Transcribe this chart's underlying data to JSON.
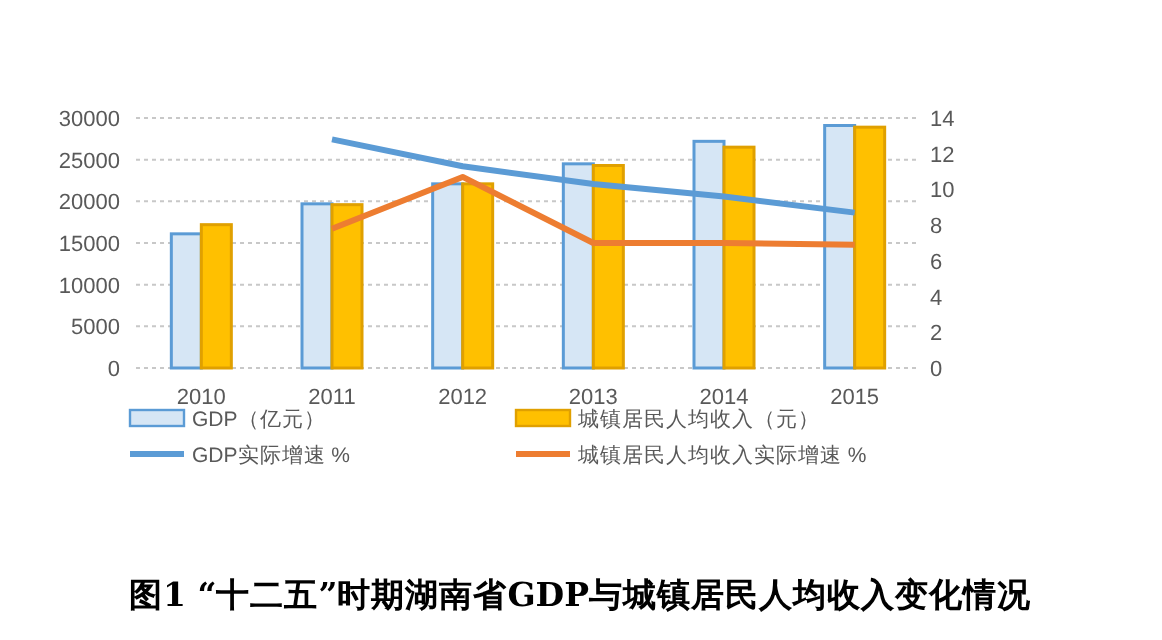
{
  "chart_data": {
    "type": "bar",
    "title": "图1 “十二五”时期湖南省GDP与城镇居民人均收入变化情况",
    "categories": [
      "2010",
      "2011",
      "2012",
      "2013",
      "2014",
      "2015"
    ],
    "series": [
      {
        "name": "GDP（亿元）",
        "color": "#5b9bd5",
        "values": [
          16100,
          19700,
          22100,
          24500,
          27200,
          29100
        ]
      },
      {
        "name": "城镇居民人均收入（元）",
        "color": "#ffc000",
        "values": [
          17200,
          19600,
          22100,
          24300,
          26500,
          28900
        ]
      },
      {
        "name": "GDP实际增速 %",
        "type": "line",
        "axis": "y2",
        "color": "#5b9bd5",
        "values": [
          null,
          12.8,
          11.3,
          10.3,
          9.6,
          8.7
        ]
      },
      {
        "name": "城镇居民人均收入实际增速 %",
        "type": "line",
        "axis": "y2",
        "color": "#ed7d31",
        "values": [
          null,
          7.8,
          10.7,
          7.0,
          7.0,
          6.9
        ]
      }
    ],
    "ylim": [
      0,
      30000
    ],
    "yticks": [
      0,
      5000,
      10000,
      15000,
      20000,
      25000,
      30000
    ],
    "y2lim": [
      0,
      14
    ],
    "y2ticks": [
      0,
      2,
      4,
      6,
      8,
      10,
      12,
      14
    ],
    "grid": "y",
    "legend": "bottom",
    "marker": "none",
    "line_style": "solid"
  }
}
